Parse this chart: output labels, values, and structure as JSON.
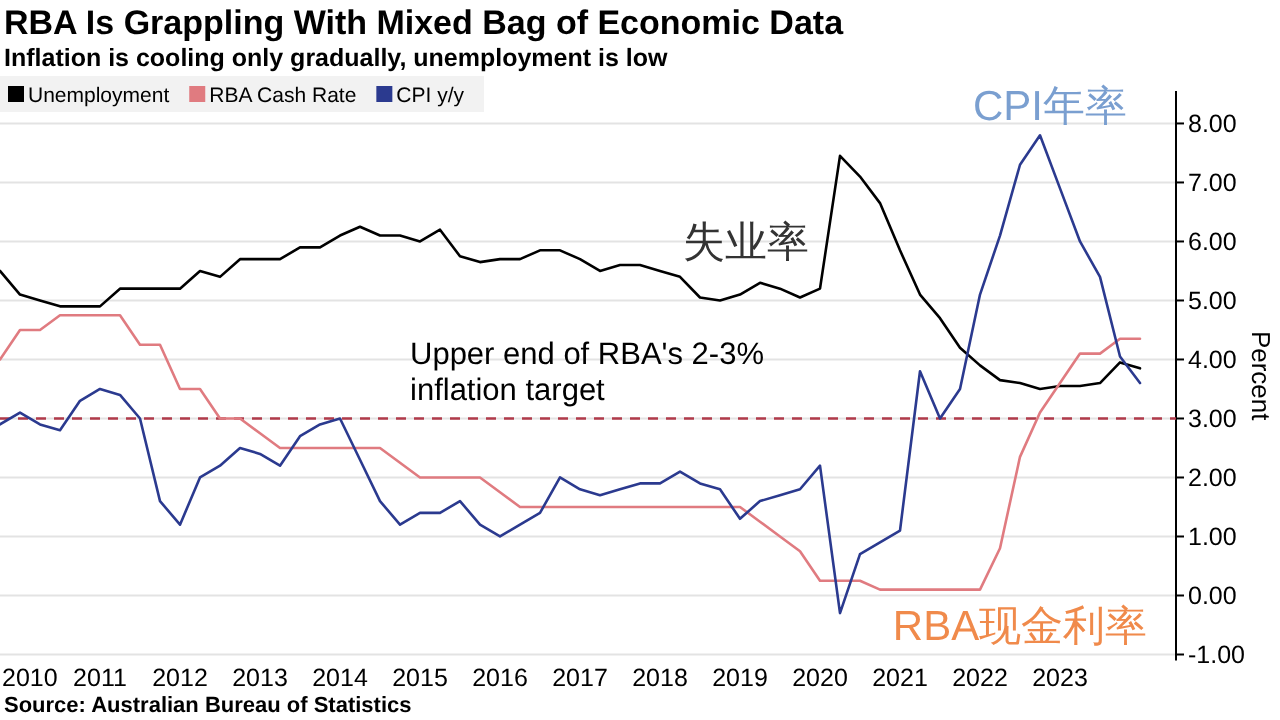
{
  "chart_data": {
    "type": "line",
    "title": "RBA Is Grappling With Mixed Bag of Economic Data",
    "subtitle": "Inflation is cooling only gradually, unemployment is low",
    "ylabel": "Percent",
    "x": [
      2009.75,
      2010,
      2010.25,
      2010.5,
      2010.75,
      2011,
      2011.25,
      2011.5,
      2011.75,
      2012,
      2012.25,
      2012.5,
      2012.75,
      2013,
      2013.25,
      2013.5,
      2013.75,
      2014,
      2014.25,
      2014.5,
      2014.75,
      2015,
      2015.25,
      2015.5,
      2015.75,
      2016,
      2016.25,
      2016.5,
      2016.75,
      2017,
      2017.25,
      2017.5,
      2017.75,
      2018,
      2018.25,
      2018.5,
      2018.75,
      2019,
      2019.25,
      2019.5,
      2019.75,
      2020,
      2020.25,
      2020.5,
      2020.75,
      2021,
      2021.25,
      2021.5,
      2021.75,
      2022,
      2022.25,
      2022.5,
      2022.75,
      2023,
      2023.25,
      2023.5,
      2023.75,
      2024
    ],
    "series": [
      {
        "name": "Unemployment",
        "color": "#000000",
        "values": [
          5.5,
          5.1,
          5.0,
          4.9,
          4.9,
          4.9,
          5.2,
          5.2,
          5.2,
          5.2,
          5.5,
          5.4,
          5.7,
          5.7,
          5.7,
          5.9,
          5.9,
          6.1,
          6.25,
          6.1,
          6.1,
          6.0,
          6.2,
          5.75,
          5.65,
          5.7,
          5.7,
          5.85,
          5.85,
          5.7,
          5.5,
          5.6,
          5.6,
          5.5,
          5.4,
          5.05,
          5.0,
          5.1,
          5.3,
          5.2,
          5.05,
          5.2,
          7.45,
          7.1,
          6.65,
          5.85,
          5.1,
          4.7,
          4.2,
          3.9,
          3.65,
          3.6,
          3.5,
          3.55,
          3.55,
          3.6,
          3.95,
          3.85
        ]
      },
      {
        "name": "RBA Cash Rate",
        "color": "#e07b80",
        "values": [
          4.0,
          4.5,
          4.5,
          4.75,
          4.75,
          4.75,
          4.75,
          4.25,
          4.25,
          3.5,
          3.5,
          3.0,
          3.0,
          2.75,
          2.5,
          2.5,
          2.5,
          2.5,
          2.5,
          2.5,
          2.25,
          2.0,
          2.0,
          2.0,
          2.0,
          1.75,
          1.5,
          1.5,
          1.5,
          1.5,
          1.5,
          1.5,
          1.5,
          1.5,
          1.5,
          1.5,
          1.5,
          1.5,
          1.25,
          1.0,
          0.75,
          0.25,
          0.25,
          0.25,
          0.1,
          0.1,
          0.1,
          0.1,
          0.1,
          0.1,
          0.8,
          2.35,
          3.1,
          3.6,
          4.1,
          4.1,
          4.35,
          4.35
        ]
      },
      {
        "name": "CPI y/y",
        "color": "#2b3a8f",
        "values": [
          2.9,
          3.1,
          2.9,
          2.8,
          3.3,
          3.5,
          3.4,
          3.0,
          1.6,
          1.2,
          2.0,
          2.2,
          2.5,
          2.4,
          2.2,
          2.7,
          2.9,
          3.0,
          2.3,
          1.6,
          1.2,
          1.4,
          1.4,
          1.6,
          1.2,
          1.0,
          1.2,
          1.4,
          2.0,
          1.8,
          1.7,
          1.8,
          1.9,
          1.9,
          2.1,
          1.9,
          1.8,
          1.3,
          1.6,
          1.7,
          1.8,
          2.2,
          -0.3,
          0.7,
          0.9,
          1.1,
          3.8,
          3.0,
          3.5,
          5.1,
          6.1,
          7.3,
          7.8,
          6.9,
          6.0,
          5.4,
          4.05,
          3.6
        ]
      }
    ],
    "xlim": [
      2009.75,
      2024.45
    ],
    "xticks": [
      2010,
      2011,
      2012,
      2013,
      2014,
      2015,
      2016,
      2017,
      2018,
      2019,
      2020,
      2021,
      2022,
      2023
    ],
    "ylim": [
      -1.1,
      8.55
    ],
    "yticks": [
      {
        "value": -1,
        "label": "-1.00"
      },
      {
        "value": 0,
        "label": "0.00"
      },
      {
        "value": 1,
        "label": "1.00"
      },
      {
        "value": 2,
        "label": "2.00"
      },
      {
        "value": 3,
        "label": "3.00"
      },
      {
        "value": 4,
        "label": "4.00"
      },
      {
        "value": 5,
        "label": "5.00"
      },
      {
        "value": 6,
        "label": "6.00"
      },
      {
        "value": 7,
        "label": "7.00"
      },
      {
        "value": 8,
        "label": "8.00"
      }
    ],
    "grid": "y",
    "legend": "top left",
    "ref_lines": [
      {
        "axis": "y",
        "value": 3,
        "label": "Upper end of RBA's 2-3% inflation target",
        "color": "#b03a4a",
        "line_style": "dashed"
      }
    ],
    "annotations": [
      "失业率",
      "CPI年率",
      "RBA现金利率",
      "Source: Australian Bureau of Statistics"
    ]
  }
}
